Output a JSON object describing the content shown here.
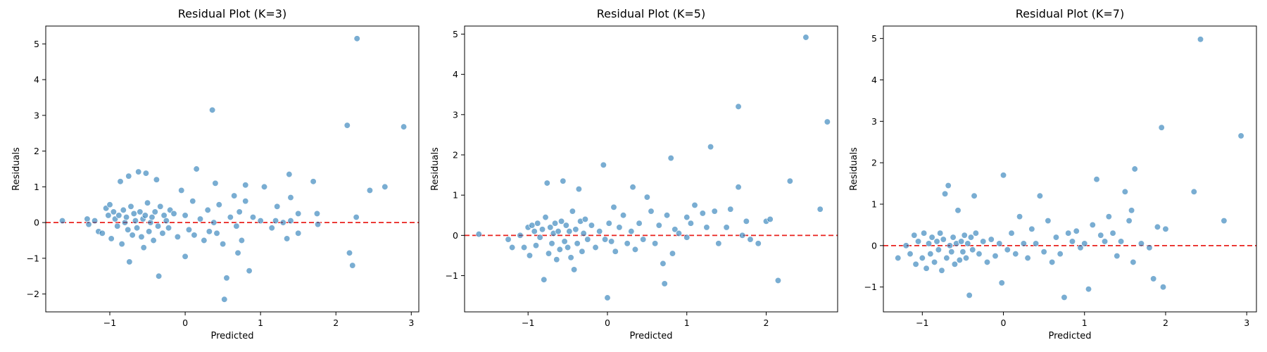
{
  "chart_data": [
    {
      "type": "scatter",
      "title": "Residual Plot (K=3)",
      "xlabel": "Predicted",
      "ylabel": "Residuals",
      "xlim": [
        -1.85,
        3.1
      ],
      "ylim": [
        -2.5,
        5.5
      ],
      "xticks": [
        -1,
        0,
        1,
        2,
        3
      ],
      "yticks": [
        -2,
        -1,
        0,
        1,
        2,
        3,
        4,
        5
      ],
      "reference_line": {
        "y": 0,
        "color": "#e8211d",
        "style": "dashed"
      },
      "marker_color": "#1f77b4",
      "points": [
        [
          -1.63,
          0.05
        ],
        [
          -1.3,
          0.1
        ],
        [
          -1.28,
          -0.05
        ],
        [
          -1.2,
          0.05
        ],
        [
          -1.15,
          -0.25
        ],
        [
          -1.1,
          -0.3
        ],
        [
          -1.05,
          0.4
        ],
        [
          -1.02,
          0.2
        ],
        [
          -1.0,
          0.5
        ],
        [
          -0.98,
          -0.45
        ],
        [
          -0.95,
          0.3
        ],
        [
          -0.93,
          0.1
        ],
        [
          -0.9,
          -0.1
        ],
        [
          -0.88,
          0.2
        ],
        [
          -0.86,
          1.15
        ],
        [
          -0.84,
          -0.6
        ],
        [
          -0.82,
          0.35
        ],
        [
          -0.8,
          0.0
        ],
        [
          -0.78,
          0.15
        ],
        [
          -0.76,
          -0.2
        ],
        [
          -0.75,
          1.3
        ],
        [
          -0.74,
          -1.1
        ],
        [
          -0.72,
          0.45
        ],
        [
          -0.7,
          -0.35
        ],
        [
          -0.68,
          0.25
        ],
        [
          -0.66,
          0.05
        ],
        [
          -0.64,
          -0.15
        ],
        [
          -0.62,
          1.42
        ],
        [
          -0.6,
          0.3
        ],
        [
          -0.58,
          -0.4
        ],
        [
          -0.56,
          0.1
        ],
        [
          -0.55,
          -0.7
        ],
        [
          -0.53,
          0.2
        ],
        [
          -0.52,
          1.38
        ],
        [
          -0.5,
          0.55
        ],
        [
          -0.48,
          -0.25
        ],
        [
          -0.46,
          0.0
        ],
        [
          -0.44,
          0.15
        ],
        [
          -0.42,
          -0.5
        ],
        [
          -0.4,
          0.3
        ],
        [
          -0.38,
          1.2
        ],
        [
          -0.36,
          -0.1
        ],
        [
          -0.35,
          -1.5
        ],
        [
          -0.33,
          0.45
        ],
        [
          -0.3,
          -0.3
        ],
        [
          -0.28,
          0.2
        ],
        [
          -0.25,
          0.05
        ],
        [
          -0.22,
          -0.15
        ],
        [
          -0.2,
          0.35
        ],
        [
          -0.15,
          0.25
        ],
        [
          -0.1,
          -0.4
        ],
        [
          -0.05,
          0.9
        ],
        [
          0.0,
          0.2
        ],
        [
          0.0,
          -0.95
        ],
        [
          0.05,
          -0.2
        ],
        [
          0.1,
          0.6
        ],
        [
          0.12,
          -0.35
        ],
        [
          0.15,
          1.5
        ],
        [
          0.2,
          0.1
        ],
        [
          0.25,
          -0.5
        ],
        [
          0.3,
          0.35
        ],
        [
          0.32,
          -0.25
        ],
        [
          0.36,
          3.15
        ],
        [
          0.38,
          0.0
        ],
        [
          0.4,
          1.1
        ],
        [
          0.42,
          -0.3
        ],
        [
          0.45,
          0.5
        ],
        [
          0.5,
          -0.6
        ],
        [
          0.52,
          -2.15
        ],
        [
          0.55,
          -1.55
        ],
        [
          0.6,
          0.15
        ],
        [
          0.65,
          0.75
        ],
        [
          0.68,
          -0.1
        ],
        [
          0.7,
          -0.85
        ],
        [
          0.72,
          0.3
        ],
        [
          0.75,
          -0.5
        ],
        [
          0.8,
          0.6
        ],
        [
          0.8,
          1.05
        ],
        [
          0.85,
          -1.35
        ],
        [
          0.9,
          0.15
        ],
        [
          1.0,
          0.05
        ],
        [
          1.05,
          1.0
        ],
        [
          1.15,
          -0.15
        ],
        [
          1.2,
          0.05
        ],
        [
          1.22,
          0.45
        ],
        [
          1.3,
          0.0
        ],
        [
          1.35,
          -0.45
        ],
        [
          1.38,
          1.35
        ],
        [
          1.4,
          0.7
        ],
        [
          1.4,
          0.05
        ],
        [
          1.5,
          0.25
        ],
        [
          1.5,
          -0.3
        ],
        [
          1.7,
          1.15
        ],
        [
          1.75,
          0.25
        ],
        [
          1.76,
          -0.05
        ],
        [
          2.15,
          2.72
        ],
        [
          2.18,
          -0.85
        ],
        [
          2.22,
          -1.2
        ],
        [
          2.27,
          0.15
        ],
        [
          2.28,
          5.15
        ],
        [
          2.45,
          0.9
        ],
        [
          2.65,
          1.0
        ],
        [
          2.9,
          2.68
        ]
      ]
    },
    {
      "type": "scatter",
      "title": "Residual Plot (K=5)",
      "xlabel": "Predicted",
      "ylabel": "Residuals",
      "xlim": [
        -1.8,
        2.9
      ],
      "ylim": [
        -1.9,
        5.2
      ],
      "xticks": [
        -1,
        0,
        1,
        2
      ],
      "yticks": [
        -1,
        0,
        1,
        2,
        3,
        4,
        5
      ],
      "reference_line": {
        "y": 0,
        "color": "#e8211d",
        "style": "dashed"
      },
      "marker_color": "#1f77b4",
      "points": [
        [
          -1.62,
          0.03
        ],
        [
          -1.25,
          -0.1
        ],
        [
          -1.2,
          -0.3
        ],
        [
          -1.1,
          0.0
        ],
        [
          -1.05,
          -0.3
        ],
        [
          -1.0,
          0.2
        ],
        [
          -0.98,
          -0.5
        ],
        [
          -0.95,
          0.25
        ],
        [
          -0.92,
          0.1
        ],
        [
          -0.9,
          -0.25
        ],
        [
          -0.88,
          0.3
        ],
        [
          -0.85,
          -0.05
        ],
        [
          -0.82,
          0.15
        ],
        [
          -0.8,
          -1.1
        ],
        [
          -0.78,
          0.45
        ],
        [
          -0.76,
          1.3
        ],
        [
          -0.74,
          -0.45
        ],
        [
          -0.72,
          0.2
        ],
        [
          -0.7,
          -0.2
        ],
        [
          -0.68,
          0.05
        ],
        [
          -0.66,
          0.3
        ],
        [
          -0.64,
          -0.6
        ],
        [
          -0.62,
          0.1
        ],
        [
          -0.6,
          -0.35
        ],
        [
          -0.58,
          0.35
        ],
        [
          -0.56,
          1.35
        ],
        [
          -0.54,
          -0.15
        ],
        [
          -0.52,
          0.25
        ],
        [
          -0.5,
          -0.3
        ],
        [
          -0.48,
          0.1
        ],
        [
          -0.46,
          -0.55
        ],
        [
          -0.44,
          0.6
        ],
        [
          -0.42,
          -0.85
        ],
        [
          -0.4,
          0.15
        ],
        [
          -0.38,
          -0.2
        ],
        [
          -0.36,
          1.15
        ],
        [
          -0.34,
          0.35
        ],
        [
          -0.32,
          -0.4
        ],
        [
          -0.3,
          0.05
        ],
        [
          -0.28,
          0.4
        ],
        [
          -0.25,
          -0.1
        ],
        [
          -0.2,
          0.25
        ],
        [
          -0.15,
          -0.3
        ],
        [
          -0.1,
          0.1
        ],
        [
          -0.05,
          1.75
        ],
        [
          -0.03,
          -0.1
        ],
        [
          0.0,
          -1.55
        ],
        [
          0.02,
          0.3
        ],
        [
          0.05,
          -0.15
        ],
        [
          0.08,
          0.7
        ],
        [
          0.1,
          -0.4
        ],
        [
          0.15,
          0.2
        ],
        [
          0.2,
          0.5
        ],
        [
          0.25,
          -0.2
        ],
        [
          0.3,
          0.1
        ],
        [
          0.32,
          1.2
        ],
        [
          0.35,
          -0.35
        ],
        [
          0.4,
          0.3
        ],
        [
          0.45,
          -0.1
        ],
        [
          0.5,
          0.95
        ],
        [
          0.55,
          0.6
        ],
        [
          0.6,
          -0.2
        ],
        [
          0.65,
          0.25
        ],
        [
          0.7,
          -0.7
        ],
        [
          0.72,
          -1.2
        ],
        [
          0.75,
          0.5
        ],
        [
          0.8,
          1.92
        ],
        [
          0.82,
          -0.45
        ],
        [
          0.85,
          0.15
        ],
        [
          0.9,
          0.05
        ],
        [
          1.0,
          0.45
        ],
        [
          1.0,
          -0.05
        ],
        [
          1.05,
          0.3
        ],
        [
          1.1,
          0.75
        ],
        [
          1.2,
          0.55
        ],
        [
          1.25,
          0.2
        ],
        [
          1.3,
          2.2
        ],
        [
          1.35,
          0.6
        ],
        [
          1.4,
          -0.2
        ],
        [
          1.5,
          0.2
        ],
        [
          1.55,
          0.65
        ],
        [
          1.65,
          3.2
        ],
        [
          1.65,
          1.2
        ],
        [
          1.7,
          0.0
        ],
        [
          1.75,
          0.35
        ],
        [
          1.8,
          -0.1
        ],
        [
          1.9,
          -0.2
        ],
        [
          2.0,
          0.35
        ],
        [
          2.05,
          0.4
        ],
        [
          2.15,
          -1.12
        ],
        [
          2.3,
          1.35
        ],
        [
          2.5,
          4.92
        ],
        [
          2.68,
          0.65
        ],
        [
          2.77,
          2.82
        ]
      ]
    },
    {
      "type": "scatter",
      "title": "Residual Plot (K=7)",
      "xlabel": "Predicted",
      "ylabel": "Residuals",
      "xlim": [
        -1.48,
        3.12
      ],
      "ylim": [
        -1.6,
        5.3
      ],
      "xticks": [
        -1,
        0,
        1,
        2,
        3
      ],
      "yticks": [
        -1,
        0,
        1,
        2,
        3,
        4,
        5
      ],
      "reference_line": {
        "y": 0,
        "color": "#e8211d",
        "style": "dashed"
      },
      "marker_color": "#1f77b4",
      "points": [
        [
          -1.3,
          -0.3
        ],
        [
          -1.2,
          0.0
        ],
        [
          -1.15,
          -0.2
        ],
        [
          -1.1,
          0.25
        ],
        [
          -1.08,
          -0.45
        ],
        [
          -1.05,
          0.1
        ],
        [
          -1.0,
          -0.3
        ],
        [
          -0.98,
          0.3
        ],
        [
          -0.95,
          -0.55
        ],
        [
          -0.92,
          0.05
        ],
        [
          -0.9,
          -0.2
        ],
        [
          -0.88,
          0.2
        ],
        [
          -0.85,
          -0.4
        ],
        [
          -0.82,
          0.1
        ],
        [
          -0.8,
          -0.1
        ],
        [
          -0.78,
          0.3
        ],
        [
          -0.76,
          -0.6
        ],
        [
          -0.74,
          0.15
        ],
        [
          -0.72,
          1.25
        ],
        [
          -0.7,
          -0.3
        ],
        [
          -0.68,
          1.45
        ],
        [
          -0.66,
          0.0
        ],
        [
          -0.64,
          -0.15
        ],
        [
          -0.62,
          0.2
        ],
        [
          -0.6,
          -0.45
        ],
        [
          -0.58,
          0.05
        ],
        [
          -0.56,
          0.85
        ],
        [
          -0.54,
          -0.35
        ],
        [
          -0.52,
          0.1
        ],
        [
          -0.5,
          -0.15
        ],
        [
          -0.48,
          0.25
        ],
        [
          -0.46,
          -0.3
        ],
        [
          -0.44,
          0.05
        ],
        [
          -0.42,
          -1.2
        ],
        [
          -0.4,
          0.2
        ],
        [
          -0.38,
          -0.1
        ],
        [
          -0.36,
          1.2
        ],
        [
          -0.34,
          0.3
        ],
        [
          -0.3,
          -0.2
        ],
        [
          -0.25,
          0.1
        ],
        [
          -0.2,
          -0.4
        ],
        [
          -0.15,
          0.15
        ],
        [
          -0.1,
          -0.25
        ],
        [
          -0.05,
          0.05
        ],
        [
          -0.02,
          -0.9
        ],
        [
          0.0,
          1.7
        ],
        [
          0.05,
          -0.1
        ],
        [
          0.1,
          0.3
        ],
        [
          0.15,
          -0.2
        ],
        [
          0.2,
          0.7
        ],
        [
          0.25,
          0.05
        ],
        [
          0.3,
          -0.3
        ],
        [
          0.35,
          0.4
        ],
        [
          0.4,
          0.05
        ],
        [
          0.45,
          1.2
        ],
        [
          0.5,
          -0.15
        ],
        [
          0.55,
          0.6
        ],
        [
          0.6,
          -0.4
        ],
        [
          0.65,
          0.2
        ],
        [
          0.7,
          -0.2
        ],
        [
          0.75,
          -1.25
        ],
        [
          0.8,
          0.3
        ],
        [
          0.85,
          0.1
        ],
        [
          0.9,
          0.35
        ],
        [
          0.95,
          -0.05
        ],
        [
          1.0,
          0.05
        ],
        [
          1.05,
          -1.05
        ],
        [
          1.1,
          0.5
        ],
        [
          1.15,
          1.6
        ],
        [
          1.2,
          0.25
        ],
        [
          1.25,
          0.1
        ],
        [
          1.3,
          0.7
        ],
        [
          1.35,
          0.3
        ],
        [
          1.4,
          -0.25
        ],
        [
          1.45,
          0.1
        ],
        [
          1.5,
          1.3
        ],
        [
          1.55,
          0.6
        ],
        [
          1.58,
          0.85
        ],
        [
          1.6,
          -0.4
        ],
        [
          1.62,
          1.85
        ],
        [
          1.7,
          0.05
        ],
        [
          1.8,
          -0.05
        ],
        [
          1.85,
          -0.8
        ],
        [
          1.9,
          0.45
        ],
        [
          1.95,
          2.85
        ],
        [
          1.97,
          -1.0
        ],
        [
          2.0,
          0.4
        ],
        [
          2.35,
          1.3
        ],
        [
          2.43,
          4.98
        ],
        [
          2.72,
          0.6
        ],
        [
          2.93,
          2.65
        ]
      ]
    }
  ]
}
